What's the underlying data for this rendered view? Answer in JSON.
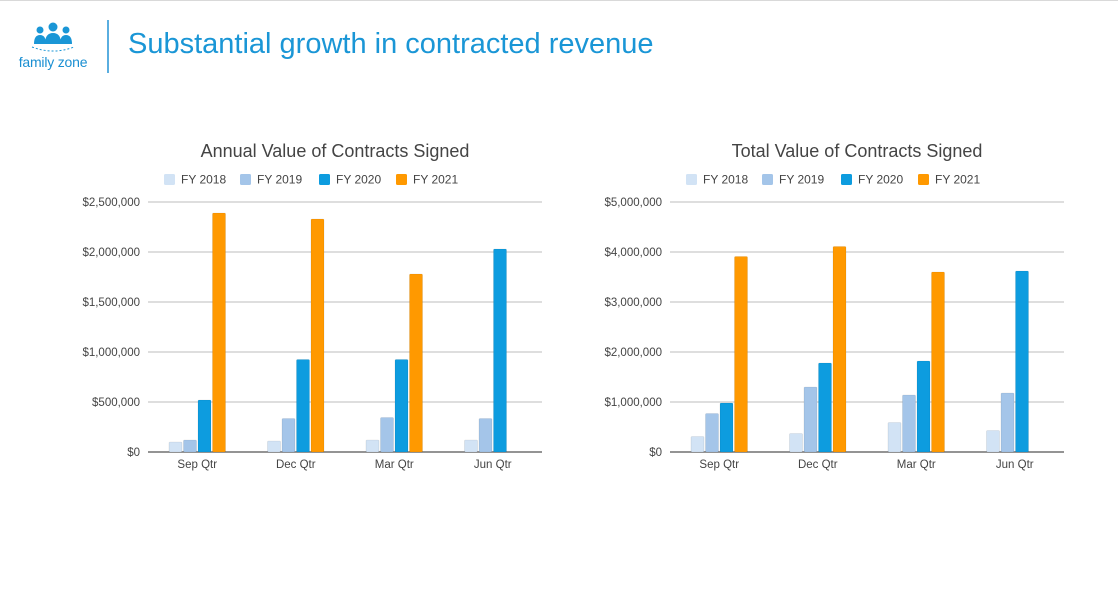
{
  "header": {
    "logo_text": "family zone",
    "title": "Substantial growth in contracted revenue"
  },
  "colors": {
    "fy2018": "#d2e3f5",
    "fy2019": "#a4c5e9",
    "fy2020": "#0d9cdf",
    "fy2021": "#ff9900",
    "grid": "#bdbdbd",
    "axis": "#555555",
    "text": "#444444"
  },
  "chart_data": [
    {
      "type": "bar",
      "title": "Annual Value of Contracts Signed",
      "categories": [
        "Sep Qtr",
        "Dec Qtr",
        "Mar Qtr",
        "Jun Qtr"
      ],
      "series": [
        {
          "name": "FY 2018",
          "values": [
            100000,
            110000,
            120000,
            120000
          ]
        },
        {
          "name": "FY 2019",
          "values": [
            120000,
            335000,
            345000,
            335000
          ]
        },
        {
          "name": "FY 2020",
          "values": [
            520000,
            925000,
            925000,
            2030000
          ]
        },
        {
          "name": "FY 2021",
          "values": [
            2390000,
            2330000,
            1780000,
            null
          ]
        }
      ],
      "ylim": [
        0,
        2500000
      ],
      "yticks": [
        0,
        500000,
        1000000,
        1500000,
        2000000,
        2500000
      ],
      "ytick_labels": [
        "$0",
        "$500,000",
        "$1,000,000",
        "$1,500,000",
        "$2,000,000",
        "$2,500,000"
      ],
      "legend": "top",
      "grid": true
    },
    {
      "type": "bar",
      "title": "Total Value of Contracts Signed",
      "categories": [
        "Sep Qtr",
        "Dec Qtr",
        "Mar Qtr",
        "Jun Qtr"
      ],
      "series": [
        {
          "name": "FY 2018",
          "values": [
            310000,
            370000,
            590000,
            430000
          ]
        },
        {
          "name": "FY 2019",
          "values": [
            770000,
            1300000,
            1140000,
            1180000
          ]
        },
        {
          "name": "FY 2020",
          "values": [
            980000,
            1780000,
            1820000,
            3620000
          ]
        },
        {
          "name": "FY 2021",
          "values": [
            3910000,
            4110000,
            3600000,
            null
          ]
        }
      ],
      "ylim": [
        0,
        5000000
      ],
      "yticks": [
        0,
        1000000,
        2000000,
        3000000,
        4000000,
        5000000
      ],
      "ytick_labels": [
        "$0",
        "$1,000,000",
        "$2,000,000",
        "$3,000,000",
        "$4,000,000",
        "$5,000,000"
      ],
      "legend": "top",
      "grid": true
    }
  ]
}
